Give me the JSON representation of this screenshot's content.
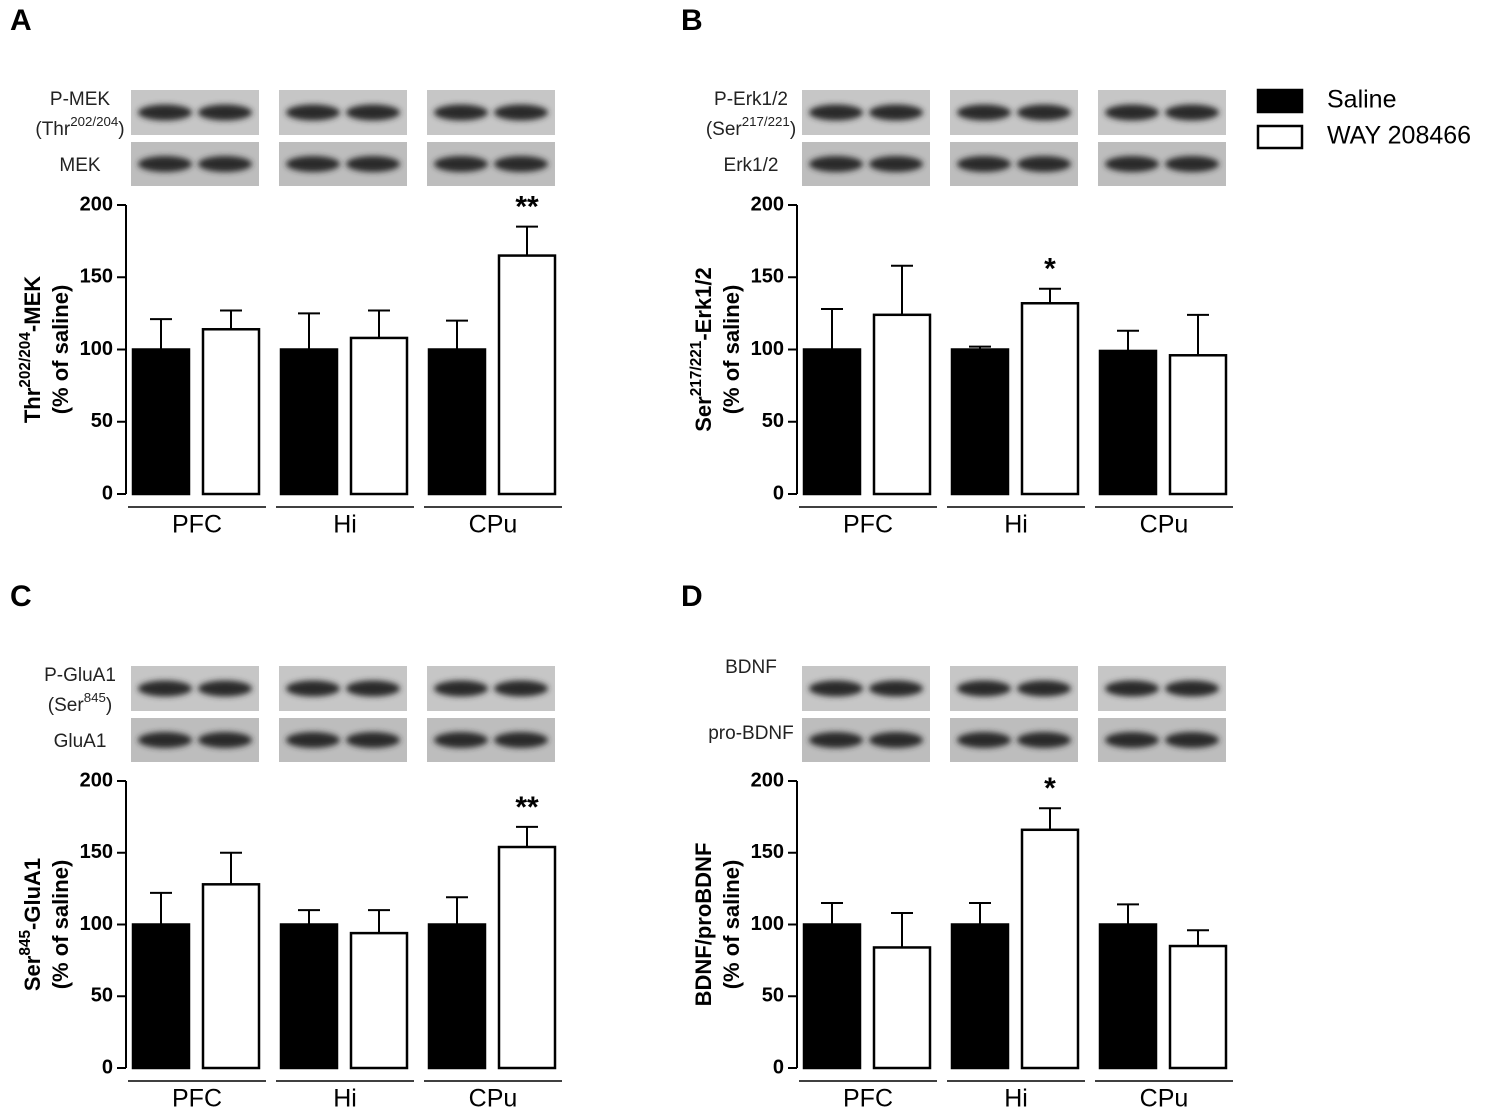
{
  "chart_data": [
    {
      "type": "bar",
      "panel": "A",
      "blot_labels": [
        [
          "P-MEK"
        ],
        [
          "(Thr",
          "202/204",
          ")"
        ],
        [
          "MEK"
        ]
      ],
      "ylabel": [
        [
          "Thr",
          "202/204",
          "-MEK"
        ],
        [
          "(% of saline)"
        ]
      ],
      "categories": [
        "PFC",
        "Hi",
        "CPu"
      ],
      "series": [
        {
          "name": "Saline",
          "color": "#000000",
          "values": [
            100,
            100,
            100
          ],
          "errors": [
            21,
            25,
            20
          ]
        },
        {
          "name": "WAY 208466",
          "color": "#ffffff",
          "values": [
            114,
            108,
            165
          ],
          "errors": [
            13,
            19,
            20
          ]
        }
      ],
      "annotations": [
        {
          "text": "**",
          "category": "CPu"
        }
      ],
      "ylim": [
        0,
        200
      ],
      "yticks": [
        0,
        50,
        100,
        150,
        200
      ]
    },
    {
      "type": "bar",
      "panel": "B",
      "blot_labels": [
        [
          "P-Erk1/2"
        ],
        [
          "(Ser",
          "217/221",
          ")"
        ],
        [
          "Erk1/2"
        ]
      ],
      "ylabel": [
        [
          "Ser",
          "217/221",
          "-Erk1/2"
        ],
        [
          "(% of saline)"
        ]
      ],
      "categories": [
        "PFC",
        "Hi",
        "CPu"
      ],
      "series": [
        {
          "color": "#000000",
          "values": [
            100,
            100,
            99
          ],
          "errors": [
            28,
            2,
            14
          ]
        },
        {
          "color": "#ffffff",
          "values": [
            124,
            132,
            96
          ],
          "errors": [
            34,
            10,
            28
          ]
        }
      ],
      "annotations": [
        {
          "text": "*",
          "category": "Hi"
        }
      ],
      "ylim": [
        0,
        200
      ],
      "yticks": [
        0,
        50,
        100,
        150,
        200
      ]
    },
    {
      "type": "bar",
      "panel": "C",
      "blot_labels": [
        [
          "P-GluA1"
        ],
        [
          "(Ser",
          "845",
          ")"
        ],
        [
          "GluA1"
        ]
      ],
      "ylabel": [
        [
          "Ser",
          "845",
          "-GluA1"
        ],
        [
          "(% of saline)"
        ]
      ],
      "categories": [
        "PFC",
        "Hi",
        "CPu"
      ],
      "series": [
        {
          "color": "#000000",
          "values": [
            100,
            100,
            100
          ],
          "errors": [
            22,
            10,
            19
          ]
        },
        {
          "color": "#ffffff",
          "values": [
            128,
            94,
            154
          ],
          "errors": [
            22,
            16,
            14
          ]
        }
      ],
      "annotations": [
        {
          "text": "**",
          "category": "CPu"
        }
      ],
      "ylim": [
        0,
        200
      ],
      "yticks": [
        0,
        50,
        100,
        150,
        200
      ]
    },
    {
      "type": "bar",
      "panel": "D",
      "blot_labels": [
        [
          "BDNF"
        ],
        [
          "pro-BDNF"
        ]
      ],
      "ylabel": [
        [
          "BDNF/proBDNF"
        ],
        [
          "(% of saline)"
        ]
      ],
      "categories": [
        "PFC",
        "Hi",
        "CPu"
      ],
      "series": [
        {
          "color": "#000000",
          "values": [
            100,
            100,
            100
          ],
          "errors": [
            15,
            15,
            14
          ]
        },
        {
          "color": "#ffffff",
          "values": [
            84,
            166,
            85
          ],
          "errors": [
            24,
            15,
            11
          ]
        }
      ],
      "annotations": [
        {
          "text": "*",
          "category": "Hi"
        }
      ],
      "ylim": [
        0,
        200
      ],
      "yticks": [
        0,
        50,
        100,
        150,
        200
      ]
    }
  ]
}
